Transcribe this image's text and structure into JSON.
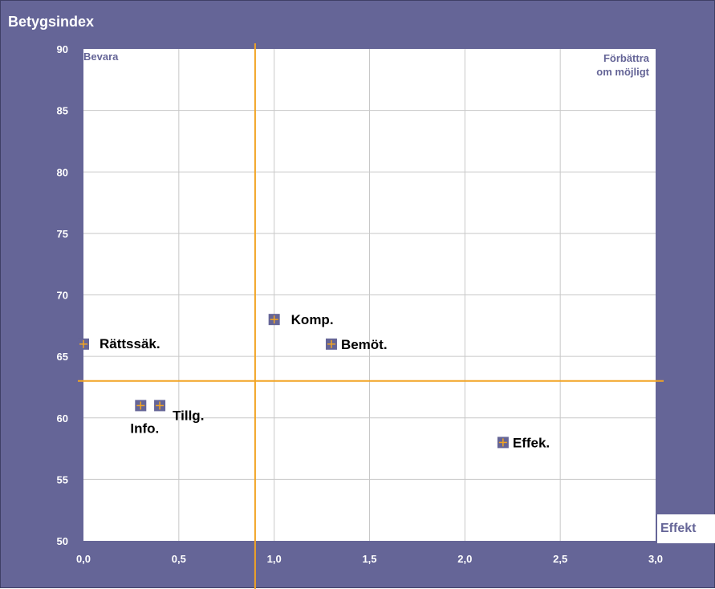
{
  "chart_data": {
    "type": "scatter",
    "ylabel": "Betygsindex",
    "xlabel": "Effekt",
    "xlim": [
      0,
      3
    ],
    "ylim": [
      50,
      90
    ],
    "x_ticks": [
      "0,0",
      "0,5",
      "1,0",
      "1,5",
      "2,0",
      "2,5",
      "3,0"
    ],
    "y_ticks": [
      "90",
      "85",
      "80",
      "75",
      "70",
      "65",
      "60",
      "55",
      "50"
    ],
    "grid": true,
    "quadrant_labels": {
      "top_left": "Bevara",
      "top_right_line1": "Förbättra",
      "top_right_line2": "om möjligt"
    },
    "reference_lines": {
      "x": 0.9,
      "y": 63
    },
    "points": [
      {
        "label": "Rättssäk.",
        "x": 0.0,
        "y": 66
      },
      {
        "label": "Info.",
        "x": 0.3,
        "y": 61
      },
      {
        "label": "Tillg.",
        "x": 0.4,
        "y": 61
      },
      {
        "label": "Komp.",
        "x": 1.0,
        "y": 68
      },
      {
        "label": "Bemöt.",
        "x": 1.3,
        "y": 66
      },
      {
        "label": "Effek.",
        "x": 2.2,
        "y": 58
      }
    ]
  },
  "colors": {
    "background": "#656597",
    "plot_area": "#ffffff",
    "grid": "#c8c8c8",
    "reference_line": "#f2a423",
    "marker_fill": "#656597",
    "marker_cross": "#f2a423",
    "quadrant_text": "#656597",
    "point_label": "#000000"
  }
}
